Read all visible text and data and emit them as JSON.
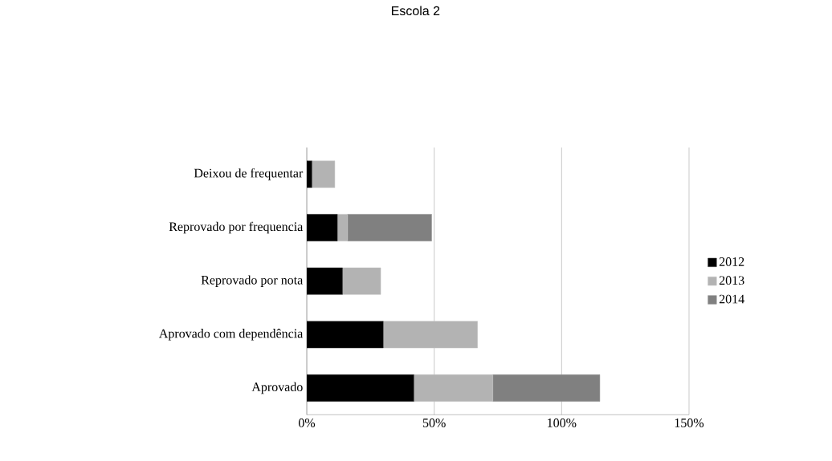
{
  "chart_data": {
    "type": "bar",
    "orientation": "horizontal",
    "stacked": true,
    "title": "Escola 2",
    "categories": [
      "Deixou de frequentar",
      "Reprovado por frequencia",
      "Reprovado por nota",
      "Aprovado com dependência",
      "Aprovado"
    ],
    "series": [
      {
        "name": "2012",
        "color": "#000000",
        "values": [
          2,
          12,
          14,
          30,
          42
        ]
      },
      {
        "name": "2013",
        "color": "#b3b3b3",
        "values": [
          9,
          4,
          15,
          37,
          31
        ]
      },
      {
        "name": "2014",
        "color": "#808080",
        "values": [
          null,
          33,
          null,
          null,
          42
        ]
      }
    ],
    "xlim": [
      0,
      150
    ],
    "xticks": [
      {
        "value": 0,
        "label": "0%"
      },
      {
        "value": 50,
        "label": "50%"
      },
      {
        "value": 100,
        "label": "100%"
      },
      {
        "value": 150,
        "label": "150%"
      }
    ],
    "grid": "x",
    "legend": "right"
  }
}
